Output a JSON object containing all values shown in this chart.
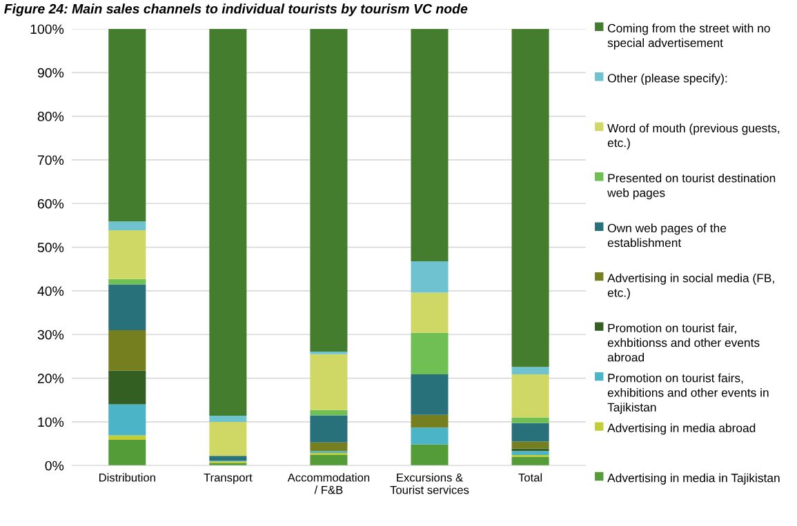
{
  "chart_data": {
    "type": "bar",
    "stacked": true,
    "title": "Figure 24: Main sales channels to individual tourists by tourism VC node",
    "categories": [
      "Distribution",
      "Transport",
      "Accommodation / F&B",
      "Excursions & Tourist services",
      "Total"
    ],
    "series": [
      {
        "name": "Advertising in media in Tajikistan",
        "color": "#539c38",
        "values": [
          5.9,
          0.5,
          2.4,
          4.8,
          2.0
        ]
      },
      {
        "name": "Advertising in media abroad",
        "color": "#c3cd35",
        "values": [
          1.0,
          0.4,
          0.5,
          0,
          0.4
        ]
      },
      {
        "name": "Promotion on tourist fairs, exhibitions and other events in Tajikistan",
        "color": "#4bb4c6",
        "values": [
          7.1,
          0.2,
          0.4,
          3.9,
          0.9
        ]
      },
      {
        "name": "Promotion on tourist fair, exhbitionss and other events abroad",
        "color": "#335f23",
        "values": [
          7.7,
          0,
          0,
          0,
          0.6
        ]
      },
      {
        "name": "Advertising in social media (FB, etc.)",
        "color": "#757f20",
        "values": [
          9.3,
          0,
          2.0,
          2.9,
          1.6
        ]
      },
      {
        "name": "Own web pages of the establishment",
        "color": "#28707a",
        "values": [
          10.5,
          1.1,
          6.2,
          9.3,
          4.2
        ]
      },
      {
        "name": "Presented on tourist destination web pages",
        "color": "#70bf55",
        "values": [
          1.2,
          0,
          1.2,
          9.5,
          1.3
        ]
      },
      {
        "name": "Word of mouth (previous guests, etc.)",
        "color": "#d0d865",
        "values": [
          11.2,
          7.8,
          12.8,
          9.2,
          9.9
        ]
      },
      {
        "name": "Other (please specify):",
        "color": "#6fc3d0",
        "values": [
          2.0,
          1.4,
          0.6,
          7.2,
          1.7
        ]
      },
      {
        "name": "Coming from the street with no special advertisement",
        "color": "#457d2e",
        "values": [
          44.1,
          88.6,
          73.9,
          53.2,
          77.4
        ]
      }
    ],
    "ylim": [
      0,
      100
    ],
    "yticks": [
      {
        "value": 0,
        "label": "0%"
      },
      {
        "value": 10,
        "label": "10%"
      },
      {
        "value": 20,
        "label": "20%"
      },
      {
        "value": 30,
        "label": "30%"
      },
      {
        "value": 40,
        "label": "40%"
      },
      {
        "value": 50,
        "label": "50%"
      },
      {
        "value": 60,
        "label": "60%"
      },
      {
        "value": 70,
        "label": "70%"
      },
      {
        "value": 80,
        "label": "80%"
      },
      {
        "value": 90,
        "label": "90%"
      },
      {
        "value": 100,
        "label": "100%"
      }
    ],
    "grid": "y",
    "legend": "right"
  }
}
